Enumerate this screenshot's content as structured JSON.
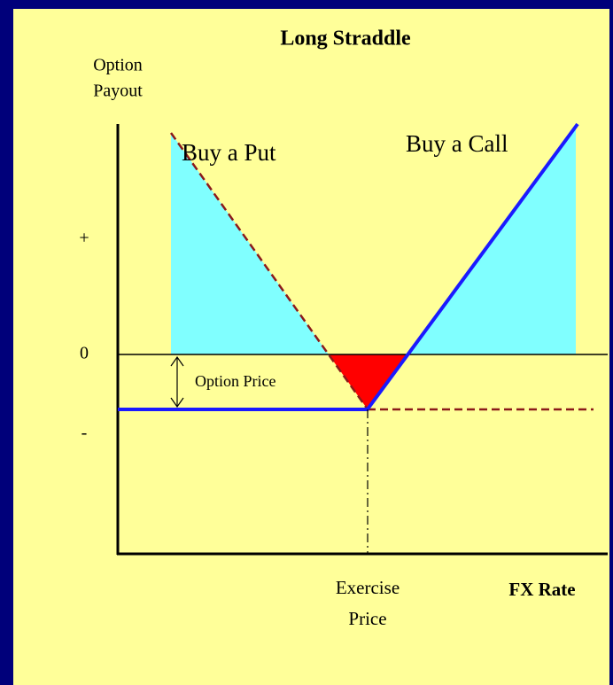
{
  "title": "Long Straddle",
  "y_axis": {
    "label_line1": "Option",
    "label_line2": "Payout",
    "plus": "+",
    "zero": "0",
    "minus": "-"
  },
  "x_axis": {
    "label": "FX Rate",
    "exercise_line1": "Exercise",
    "exercise_line2": "Price"
  },
  "annotations": {
    "put": "Buy a Put",
    "call": "Buy a Call",
    "option_price": "Option Price"
  }
}
